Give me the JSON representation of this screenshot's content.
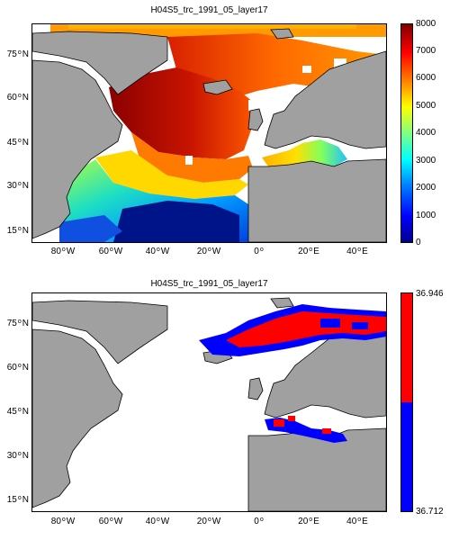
{
  "top": {
    "title": "H04S5_trc_1991_05_layer17",
    "lat_ticks": [
      {
        "deg": "75",
        "hemi": "N"
      },
      {
        "deg": "60",
        "hemi": "N"
      },
      {
        "deg": "45",
        "hemi": "N"
      },
      {
        "deg": "30",
        "hemi": "N"
      },
      {
        "deg": "15",
        "hemi": "N"
      }
    ],
    "lon_ticks": [
      {
        "deg": "80",
        "hemi": "W"
      },
      {
        "deg": "60",
        "hemi": "W"
      },
      {
        "deg": "40",
        "hemi": "W"
      },
      {
        "deg": "20",
        "hemi": "W"
      },
      {
        "deg": "0",
        "hemi": ""
      },
      {
        "deg": "20",
        "hemi": "E"
      },
      {
        "deg": "40",
        "hemi": "E"
      }
    ],
    "colorbar": {
      "colormap": "jet",
      "min": 0,
      "max": 8000,
      "ticks": [
        "8000",
        "7000",
        "6000",
        "5000",
        "4000",
        "3000",
        "2000",
        "1000",
        "0"
      ]
    }
  },
  "bottom": {
    "title": "H04S5_trc_1991_05_layer17",
    "lat_ticks": [
      {
        "deg": "75",
        "hemi": "N"
      },
      {
        "deg": "60",
        "hemi": "N"
      },
      {
        "deg": "45",
        "hemi": "N"
      },
      {
        "deg": "30",
        "hemi": "N"
      },
      {
        "deg": "15",
        "hemi": "N"
      }
    ],
    "lon_ticks": [
      {
        "deg": "80",
        "hemi": "W"
      },
      {
        "deg": "60",
        "hemi": "W"
      },
      {
        "deg": "40",
        "hemi": "W"
      },
      {
        "deg": "20",
        "hemi": "W"
      },
      {
        "deg": "0",
        "hemi": ""
      },
      {
        "deg": "20",
        "hemi": "E"
      },
      {
        "deg": "40",
        "hemi": "E"
      }
    ],
    "colorbar": {
      "colors": [
        "#ff0000",
        "#0000ff"
      ],
      "max_label": "36.946",
      "min_label": "36.712"
    }
  },
  "colors": {
    "land": "#a0a0a0",
    "coast": "#000000",
    "missing_ocean": "#ffffff"
  }
}
